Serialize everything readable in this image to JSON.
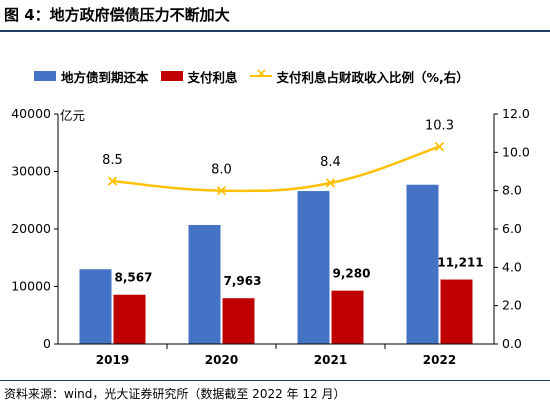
{
  "title": "图 4：地方政府偿债压力不断加大",
  "source": "资料来源：wind，光大证券研究所（数据截至 2022 年 12 月）",
  "colors": {
    "debt": "#4472c4",
    "interest": "#c00000",
    "ratio": "#ffc000",
    "axis": "#000000"
  },
  "chart_data": {
    "type": "bar",
    "categories": [
      "2019",
      "2020",
      "2021",
      "2022"
    ],
    "series": [
      {
        "name": "地方债到期还本",
        "type": "bar",
        "axis": "left",
        "values": [
          13000,
          20700,
          26600,
          27700
        ]
      },
      {
        "name": "支付利息",
        "type": "bar",
        "axis": "left",
        "values": [
          8567,
          7963,
          9280,
          11211
        ],
        "labels": [
          "8,567",
          "7,963",
          "9,280",
          "11,211"
        ]
      },
      {
        "name": "支付利息占财政收入比例（%,右）",
        "type": "line",
        "axis": "right",
        "values": [
          8.5,
          8.0,
          8.4,
          10.3
        ],
        "labels": [
          "8.5",
          "8.0",
          "8.4",
          "10.3"
        ]
      }
    ],
    "y_left": {
      "unit": "亿元",
      "ylim": [
        0,
        40000
      ],
      "ticks": [
        "0",
        "10000",
        "20000",
        "30000",
        "40000"
      ]
    },
    "y_right": {
      "ylim": [
        0,
        12
      ],
      "ticks": [
        "0.0",
        "2.0",
        "4.0",
        "6.0",
        "8.0",
        "10.0",
        "12.0"
      ]
    },
    "grid": false,
    "legend_position": "top"
  }
}
